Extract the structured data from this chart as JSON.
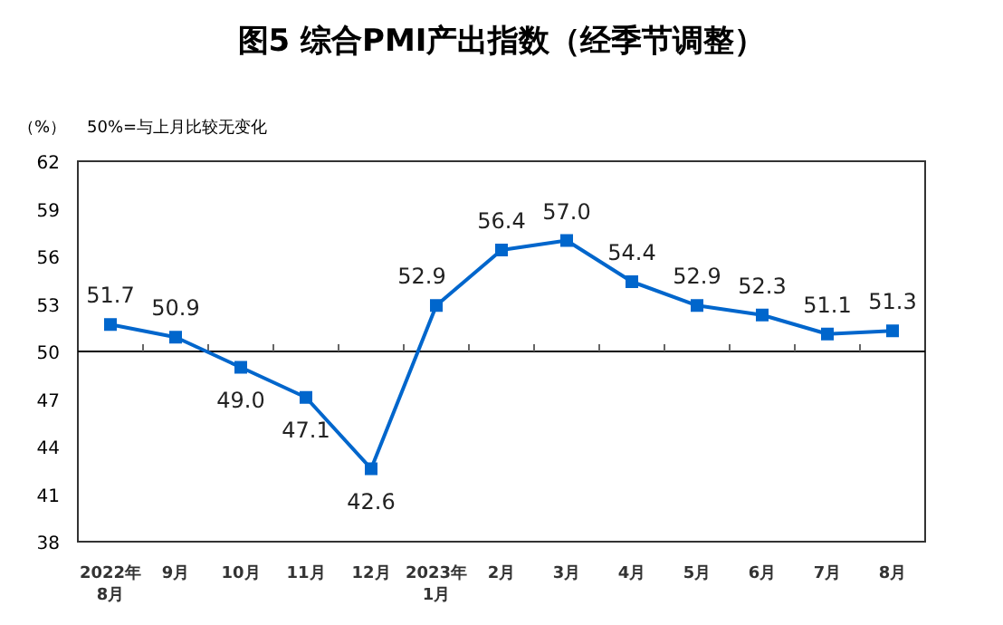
{
  "chart_data": {
    "type": "line",
    "title": "图5 综合PMI产出指数（经季节调整）",
    "ylabel": "（%）",
    "annotations": [
      "50%=与上月比较无变化"
    ],
    "categories": [
      "2022年\n8月",
      "9月",
      "10月",
      "11月",
      "12月",
      "2023年\n1月",
      "2月",
      "3月",
      "4月",
      "5月",
      "6月",
      "7月",
      "8月"
    ],
    "series": [
      {
        "color": "#0066cc",
        "values": [
          51.7,
          50.9,
          49.0,
          47.1,
          42.6,
          52.9,
          56.4,
          57.0,
          54.4,
          52.9,
          52.3,
          51.1,
          51.3
        ],
        "value_labels": [
          "51.7",
          "50.9",
          "49.0",
          "47.1",
          "42.6",
          "52.9",
          "56.4",
          "57.0",
          "54.4",
          "52.9",
          "52.3",
          "51.1",
          "51.3"
        ]
      }
    ],
    "ylim": [
      38,
      62
    ],
    "yticks": [
      38,
      41,
      44,
      47,
      50,
      53,
      56,
      59,
      62
    ],
    "ref_lines": [
      {
        "axis": "y",
        "value": 50,
        "color": "#000000"
      }
    ],
    "marker": "square",
    "line_style": "solid",
    "grid": false
  }
}
